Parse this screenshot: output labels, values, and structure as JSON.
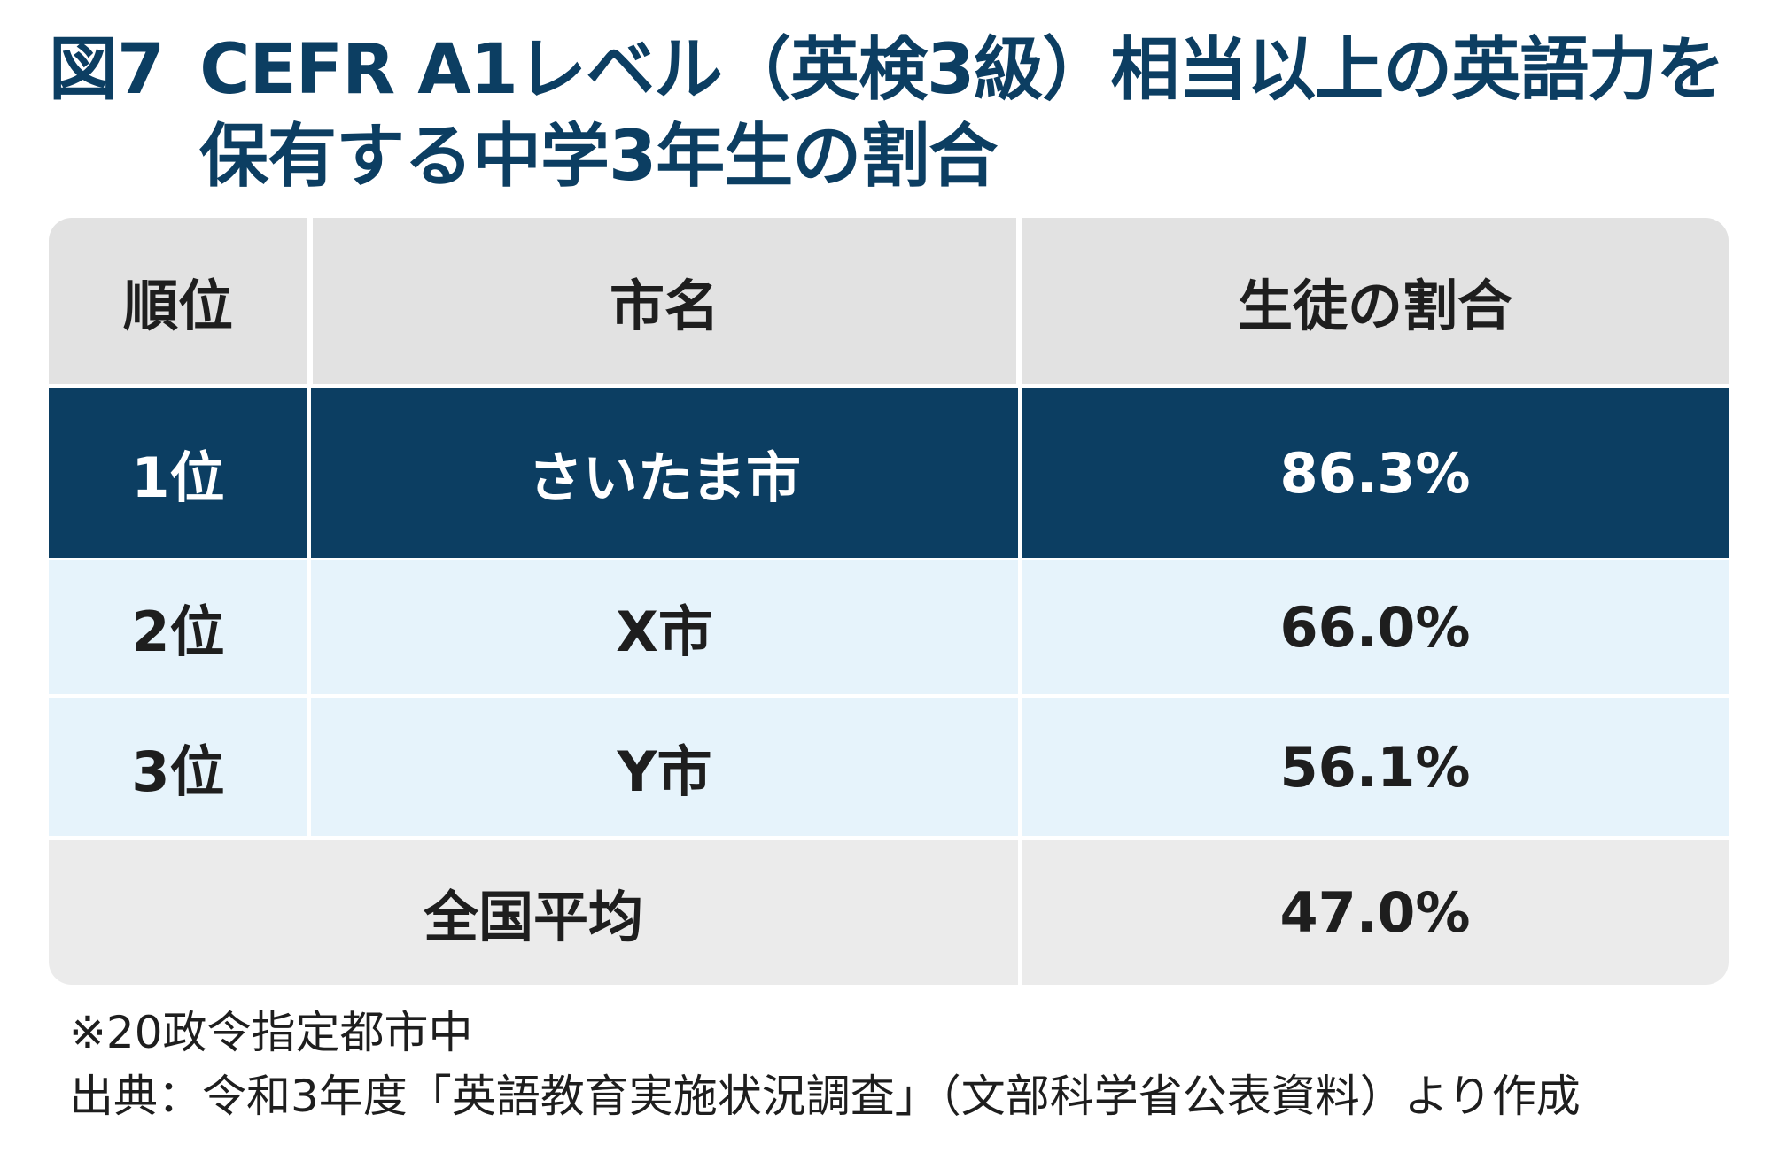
{
  "title": {
    "figure_no": "図7",
    "line1": "CEFR A1レベル（英検3級）相当以上の英語力を",
    "line2": "保有する中学3年生の割合"
  },
  "chart_data": {
    "type": "table",
    "columns": [
      "順位",
      "市名",
      "生徒の割合"
    ],
    "rows": [
      {
        "rank": "1位",
        "city": "さいたま市",
        "share": "86.3%"
      },
      {
        "rank": "2位",
        "city": "X市",
        "share": "66.0%"
      },
      {
        "rank": "3位",
        "city": "Y市",
        "share": "56.1%"
      }
    ],
    "summary": {
      "label": "全国平均",
      "share": "47.0%"
    },
    "colors": {
      "highlight": "#0c3e62",
      "header": "#e2e2e2",
      "row": "#e6f3fb",
      "summary": "#ebebeb"
    }
  },
  "notes": {
    "note": "※20政令指定都市中",
    "source": "出典：令和3年度「英語教育実施状況調査」（文部科学省公表資料）より作成"
  }
}
